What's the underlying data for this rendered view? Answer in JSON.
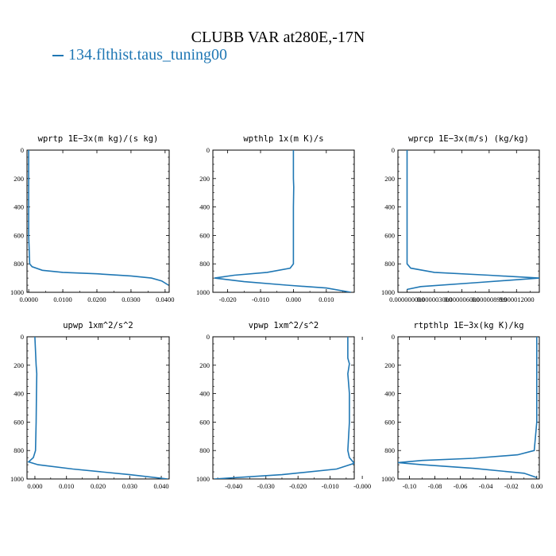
{
  "figure": {
    "title": "CLUBB VAR at280E,-17N",
    "legend": "134.flthist.taus_tuning00",
    "line_color": "#1f77b4"
  },
  "chart_data": [
    {
      "type": "line",
      "title": "wprtp  1E−3x(m kg)/(s kg)",
      "xlim": [
        -0.0005,
        0.0412
      ],
      "ylim": [
        1000,
        0
      ],
      "xticks": [
        0.0,
        0.01,
        0.02,
        0.03,
        0.04
      ],
      "xticklabels": [
        "0.0000",
        "0.0100",
        "0.0200",
        "0.0300",
        "0.0400"
      ],
      "yticks": [
        0,
        200,
        400,
        600,
        800,
        1000
      ],
      "series": [
        {
          "x": [
            0.0,
            0.0,
            0.0,
            0.0,
            0.0003,
            0.001,
            0.004,
            0.01,
            0.02,
            0.03,
            0.036,
            0.039,
            0.041
          ],
          "y": [
            0,
            200,
            400,
            600,
            800,
            820,
            845,
            860,
            870,
            885,
            900,
            920,
            950
          ]
        }
      ]
    },
    {
      "type": "line",
      "title": "wpthlp  1x(m K)/s",
      "xlim": [
        -0.0245,
        0.0185
      ],
      "ylim": [
        1000,
        0
      ],
      "xticks": [
        -0.02,
        -0.01,
        0.0,
        0.01
      ],
      "xticklabels": [
        "-0.020",
        "-0.010",
        "0.000",
        "0.010"
      ],
      "yticks": [
        0,
        200,
        400,
        600,
        800,
        1000
      ],
      "series": [
        {
          "x": [
            0.0,
            0.0,
            0.0001,
            0.0,
            0.0,
            -0.001,
            -0.008,
            -0.018,
            -0.024,
            -0.015,
            -0.002,
            0.01,
            0.0175
          ],
          "y": [
            0,
            200,
            260,
            400,
            800,
            830,
            860,
            880,
            900,
            925,
            950,
            970,
            1000
          ]
        }
      ]
    },
    {
      "type": "line",
      "title": "wprcp  1E−3x(m/s) (kg/kg)",
      "xlim": [
        -1e-06,
        1.45e-05
      ],
      "ylim": [
        1000,
        0
      ],
      "xticks": [
        0.0,
        3e-06,
        6e-06,
        9e-06,
        1.2e-05
      ],
      "xticklabels": [
        "0.000000000",
        "0.000003000",
        "0.000006000",
        "0.000008999",
        "0.000012000"
      ],
      "yticks": [
        0,
        200,
        400,
        600,
        800,
        1000
      ],
      "series": [
        {
          "x": [
            0.0,
            0.0,
            0.0,
            0.0,
            0.0,
            4e-07,
            3e-06,
            9e-06,
            1.45e-05,
            8e-06,
            1.5e-06,
            0.0
          ],
          "y": [
            0,
            200,
            400,
            600,
            800,
            830,
            860,
            880,
            900,
            930,
            960,
            980
          ]
        }
      ]
    },
    {
      "type": "line",
      "title": "upwp   1xm^2/s^2",
      "xlim": [
        -0.0025,
        0.0425
      ],
      "ylim": [
        1000,
        0
      ],
      "xticks": [
        0.0,
        0.01,
        0.02,
        0.03,
        0.04
      ],
      "xticklabels": [
        "0.000",
        "0.010",
        "0.020",
        "0.030",
        "0.040"
      ],
      "yticks": [
        0,
        200,
        400,
        600,
        800,
        1000
      ],
      "series": [
        {
          "x": [
            0.0,
            0.0004,
            0.0006,
            0.0005,
            0.0004,
            0.0002,
            -0.0005,
            -0.002,
            0.001,
            0.012,
            0.03,
            0.042
          ],
          "y": [
            0,
            200,
            260,
            400,
            600,
            800,
            850,
            880,
            900,
            930,
            970,
            1000
          ]
        }
      ]
    },
    {
      "type": "line",
      "title": "vpwp   1xm^2/s^2",
      "xlim": [
        -0.0465,
        -0.0025
      ],
      "ylim": [
        1000,
        0
      ],
      "xticks": [
        -0.04,
        -0.03,
        -0.02,
        -0.01,
        0.0
      ],
      "xticklabels": [
        "-0.040",
        "-0.030",
        "-0.020",
        "-0.010",
        "-0.000"
      ],
      "yticks": [
        0,
        200,
        400,
        600,
        800,
        1000
      ],
      "series": [
        {
          "x": [
            -0.0045,
            -0.0045,
            -0.004,
            -0.0045,
            -0.004,
            -0.004,
            -0.0045,
            -0.004,
            -0.0025,
            -0.008,
            -0.025,
            -0.046
          ],
          "y": [
            0,
            150,
            190,
            260,
            400,
            600,
            800,
            850,
            890,
            930,
            970,
            1000
          ]
        }
      ]
    },
    {
      "type": "line",
      "title": "rtpthlp  1E−3x(kg K)/kg",
      "xlim": [
        -0.109,
        0.002
      ],
      "ylim": [
        1000,
        0
      ],
      "xticks": [
        -0.1,
        -0.08,
        -0.06,
        -0.04,
        -0.02,
        0.0
      ],
      "xticklabels": [
        "-0.10",
        "-0.08",
        "-0.06",
        "-0.04",
        "-0.02",
        "0.00"
      ],
      "yticks": [
        0,
        200,
        400,
        600,
        800,
        1000
      ],
      "series": [
        {
          "x": [
            0.0,
            0.0,
            0.0,
            -0.002,
            -0.015,
            -0.05,
            -0.09,
            -0.109,
            -0.09,
            -0.05,
            -0.01,
            0.0
          ],
          "y": [
            0,
            200,
            600,
            800,
            830,
            855,
            870,
            885,
            900,
            925,
            960,
            990
          ]
        }
      ]
    }
  ]
}
